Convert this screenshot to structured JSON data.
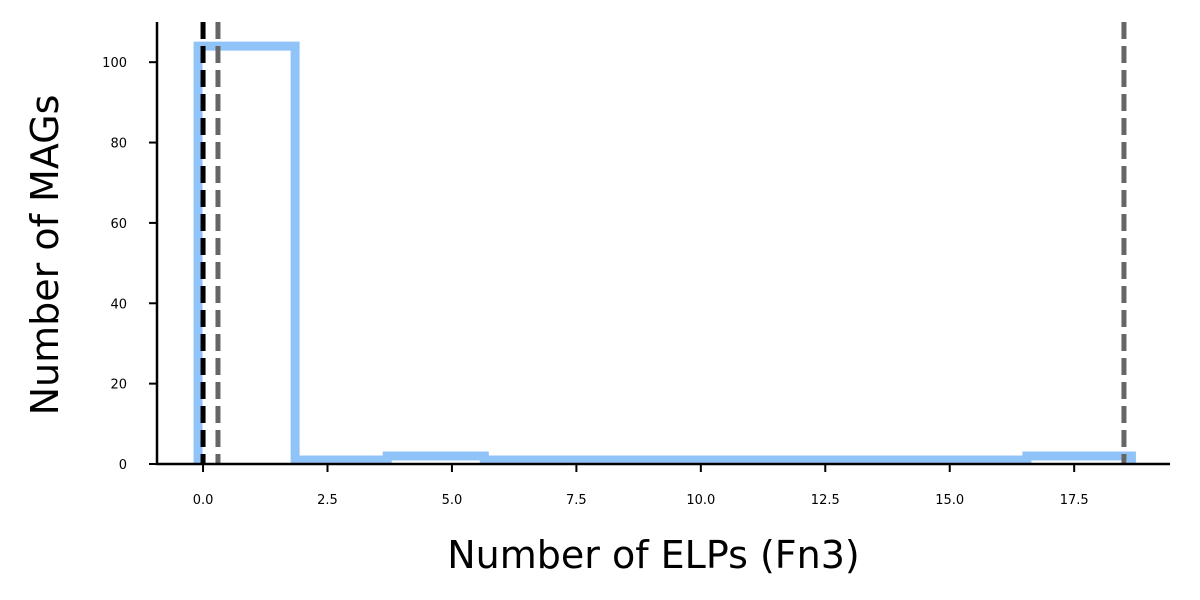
{
  "chart_data": {
    "type": "histogram",
    "title": "",
    "xlabel": "Number of ELPs (Fn3)",
    "ylabel": "Number of MAGs",
    "xlim": [
      -0.925,
      19.425
    ],
    "ylim": [
      0,
      110
    ],
    "xticks": [
      0.0,
      2.5,
      5.0,
      7.5,
      10.0,
      12.5,
      15.0,
      17.5
    ],
    "xtick_labels": [
      "0.0",
      "2.5",
      "5.0",
      "7.5",
      "10.0",
      "12.5",
      "15.0",
      "17.5"
    ],
    "yticks": [
      0,
      20,
      40,
      60,
      80,
      100
    ],
    "ytick_labels": [
      "0",
      "20",
      "40",
      "60",
      "80",
      "100"
    ],
    "bin_edges": [
      -0.1,
      1.85,
      3.7,
      5.65,
      16.55,
      18.65
    ],
    "counts": [
      104,
      1,
      2,
      1,
      2
    ],
    "histtype": "step",
    "step_color": "#90c4f9",
    "vlines": [
      {
        "x": 0.0,
        "color": "#000000",
        "style": "dashed"
      },
      {
        "x": 0.3,
        "color": "#666666",
        "style": "dashed"
      },
      {
        "x": 18.5,
        "color": "#666666",
        "style": "dashed"
      }
    ],
    "grid": false,
    "legend": "none"
  }
}
